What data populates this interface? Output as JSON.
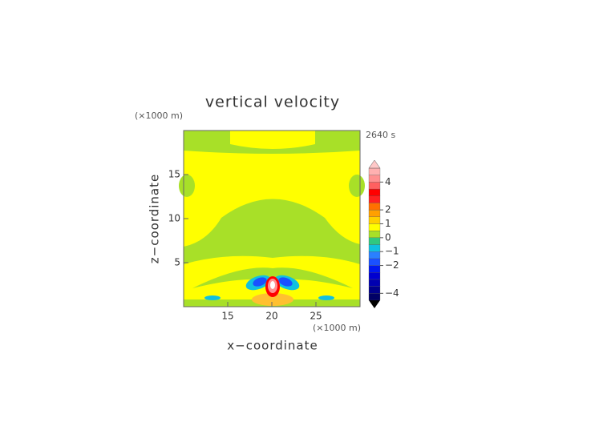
{
  "chart_data": {
    "type": "contour",
    "title": "vertical velocity",
    "x_label": "x−coordinate",
    "y_label": "z−coordinate",
    "x_unit": "(×1000 m)",
    "y_unit": "(×1000 m)",
    "time": "2640 s",
    "xlim": [
      10,
      30
    ],
    "ylim": [
      0,
      20
    ],
    "xticks": [
      15,
      20,
      25
    ],
    "yticks": [
      5,
      10,
      15
    ],
    "colorbar": {
      "levels": [
        -4.5,
        -4,
        -3.5,
        -3,
        -2.5,
        -2,
        -1.5,
        -1,
        -0.5,
        0,
        0.5,
        1,
        1.5,
        2,
        2.5,
        3,
        3.5,
        4,
        4.5,
        5
      ],
      "colors": [
        "#000066",
        "#00008c",
        "#0000b0",
        "#0000d0",
        "#0018f0",
        "#1a50ff",
        "#2a80ff",
        "#10c0e0",
        "#30c880",
        "#a8e028",
        "#ffff00",
        "#ffd000",
        "#ffa000",
        "#ff7000",
        "#ff2020",
        "#ff0000",
        "#ff6060",
        "#ff9090",
        "#ffb0b0"
      ],
      "over_color": "#ffc8c8",
      "under_color": "#000000",
      "ticks": [
        {
          "value": -4,
          "label": "−4"
        },
        {
          "value": -2,
          "label": "−2"
        },
        {
          "value": -1,
          "label": "−1"
        },
        0,
        1,
        2,
        4
      ]
    }
  }
}
